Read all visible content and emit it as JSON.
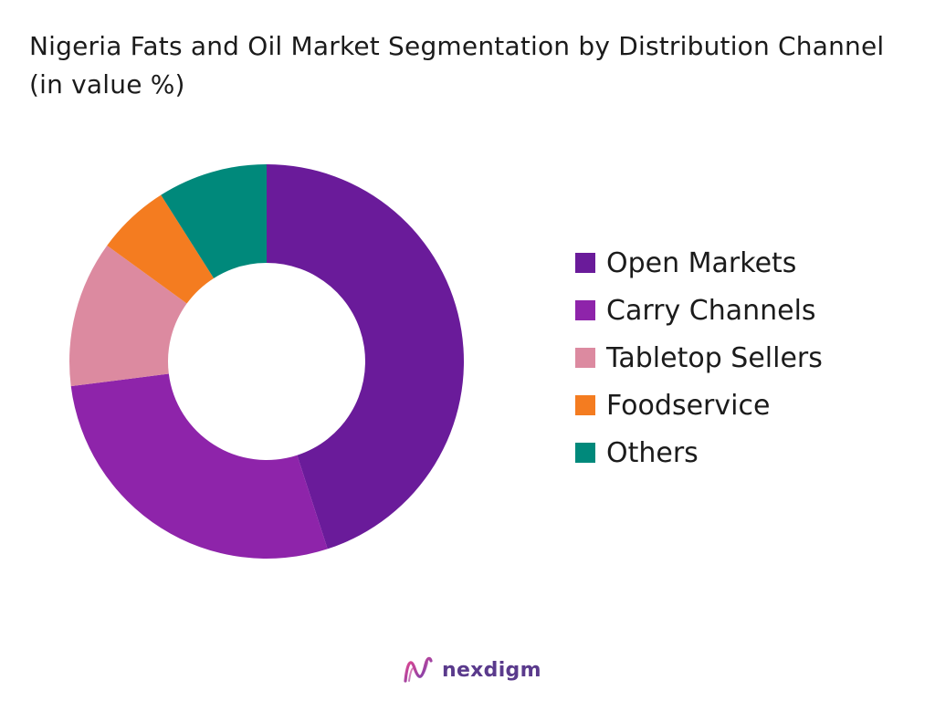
{
  "chart_data": {
    "type": "pie",
    "variant": "donut",
    "title": "Nigeria Fats and Oil Market Segmentation by Distribution Channel (in value %)",
    "categories": [
      "Open Markets",
      "Carry Channels",
      "Tabletop Sellers",
      "Foodservice",
      "Others"
    ],
    "values": [
      45,
      28,
      12,
      6,
      9
    ],
    "colors": [
      "#6a1b9a",
      "#8e24aa",
      "#dc8aa0",
      "#f47c20",
      "#00897b"
    ],
    "legend_position": "right",
    "start_angle_deg": 0,
    "direction": "clockwise"
  },
  "brand": {
    "logo_name": "nexdigm",
    "logo_icon": "nexdigm-logo-icon",
    "logo_color": "#5a3a8c"
  }
}
